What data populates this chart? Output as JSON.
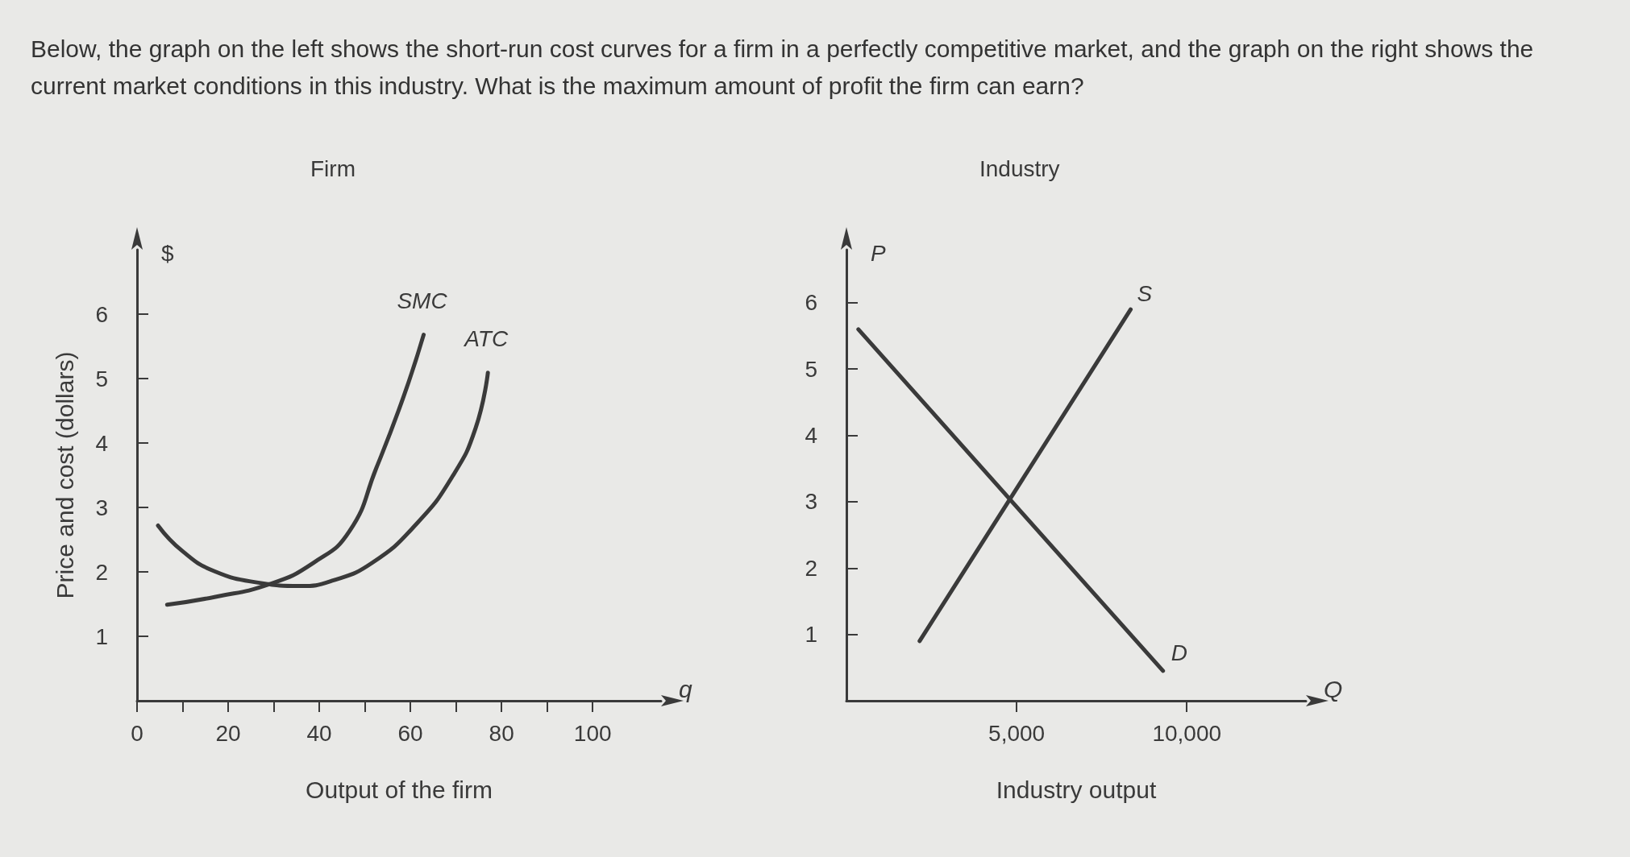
{
  "chart_data": [
    {
      "type": "line",
      "title": "Firm",
      "xlabel": "Output of the firm",
      "ylabel": "Price and cost (dollars)",
      "annotations": [
        "Below, the graph on the left shows the short-run cost curves for a firm in a perfectly competitive market, and the graph on the right shows the current market conditions in this industry. What is the maximum amount of profit the firm can earn?",
        "$",
        "q"
      ],
      "series": [
        {
          "name": "SMC",
          "color": "#3a3a3a",
          "x": [
            6.6,
            17,
            29.1,
            38.7,
            46.6,
            52.5,
            58.5,
            62.9
          ],
          "values": [
            1.49,
            1.61,
            1.81,
            2.14,
            2.63,
            3.61,
            4.72,
            5.68
          ]
        },
        {
          "name": "ATC",
          "color": "#3a3a3a",
          "x": [
            4.6,
            10,
            17,
            26.9,
            35.8,
            42.7,
            51.6,
            61.4,
            69.3,
            74.3,
            77
          ],
          "values": [
            2.72,
            2.32,
            2.01,
            1.83,
            1.78,
            1.86,
            2.14,
            2.75,
            3.49,
            4.23,
            5.09
          ]
        }
      ],
      "xlim": [
        0,
        115
      ],
      "xticks": [
        0,
        {
          "value": 10,
          "label": null
        },
        20,
        {
          "value": 30,
          "label": null
        },
        40,
        {
          "value": 50,
          "label": null
        },
        60,
        {
          "value": 70,
          "label": null
        },
        80,
        {
          "value": 90,
          "label": null
        },
        100
      ],
      "ylim": [
        0,
        7
      ],
      "yticks": [
        1,
        2,
        3,
        4,
        5,
        6
      ],
      "grid": false,
      "legend": false,
      "marker": "none",
      "line_style": "solid"
    },
    {
      "type": "line",
      "title": "Industry",
      "xlabel": "Industry output",
      "annotations": [
        "P",
        "Q"
      ],
      "series": [
        {
          "name": "D",
          "color": "#3a3a3a",
          "x": [
            350,
            9300
          ],
          "values": [
            5.6,
            0.45
          ]
        },
        {
          "name": "S",
          "color": "#3a3a3a",
          "x": [
            2150,
            8350
          ],
          "values": [
            0.9,
            5.9
          ]
        }
      ],
      "xlim": [
        0,
        13500
      ],
      "xticks": [
        {
          "value": 5000,
          "label": "5,000"
        },
        {
          "value": 10000,
          "label": "10,000"
        }
      ],
      "ylim": [
        0,
        6.8
      ],
      "yticks": [
        1,
        2,
        3,
        4,
        5,
        6
      ],
      "grid": false,
      "legend": false,
      "marker": "none",
      "line_style": "solid"
    }
  ]
}
